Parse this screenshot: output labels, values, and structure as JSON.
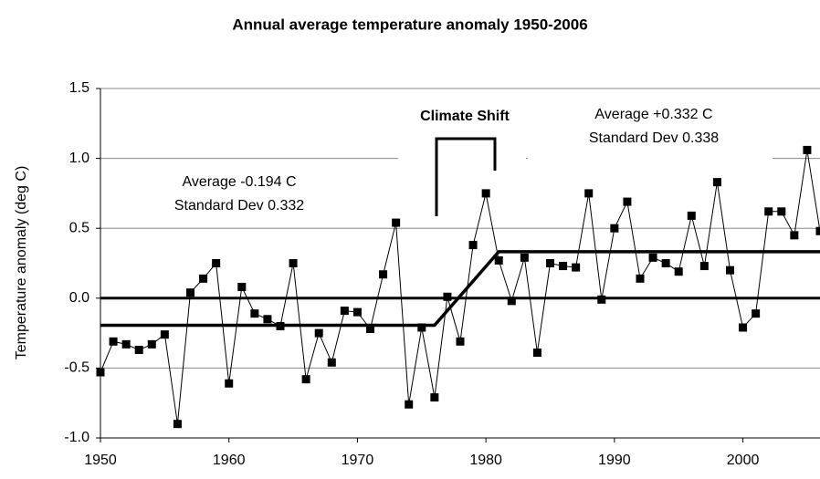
{
  "chart_data": {
    "type": "line",
    "title": "Annual average temperature anomaly 1950-2006",
    "y_label": "Temperature anomaly (deg C)",
    "x": [
      1950,
      1951,
      1952,
      1953,
      1954,
      1955,
      1956,
      1957,
      1958,
      1959,
      1960,
      1961,
      1962,
      1963,
      1964,
      1965,
      1966,
      1967,
      1968,
      1969,
      1970,
      1971,
      1972,
      1973,
      1974,
      1975,
      1976,
      1977,
      1978,
      1979,
      1980,
      1981,
      1982,
      1983,
      1984,
      1985,
      1986,
      1987,
      1988,
      1989,
      1990,
      1991,
      1992,
      1993,
      1994,
      1995,
      1996,
      1997,
      1998,
      1999,
      2000,
      2001,
      2002,
      2003,
      2004,
      2005,
      2006
    ],
    "series": [
      {
        "color": "#000000",
        "values": [
          -0.53,
          -0.31,
          -0.33,
          -0.37,
          -0.33,
          -0.26,
          -0.9,
          0.04,
          0.14,
          0.25,
          -0.61,
          0.08,
          -0.11,
          -0.15,
          -0.2,
          0.25,
          -0.58,
          -0.25,
          -0.46,
          -0.09,
          -0.1,
          -0.22,
          0.17,
          0.54,
          -0.76,
          -0.21,
          -0.71,
          0.01,
          -0.31,
          0.38,
          0.75,
          0.27,
          -0.02,
          0.29,
          -0.39,
          0.25,
          0.23,
          0.22,
          0.75,
          -0.01,
          0.5,
          0.69,
          0.14,
          0.29,
          0.25,
          0.19,
          0.59,
          0.23,
          0.83,
          0.2,
          -0.21,
          -0.11,
          0.62,
          0.62,
          0.45,
          1.06,
          0.48
        ]
      }
    ],
    "trend": {
      "color": "#000000",
      "x": [
        1950,
        1976,
        1981,
        2006
      ],
      "values": [
        -0.194,
        -0.194,
        0.332,
        0.332
      ]
    },
    "annotations": [
      "Average  -0.194 C",
      "Standard Dev  0.332",
      "Climate Shift",
      "Average  +0.332 C",
      "Standard Dev  0.338"
    ],
    "xlim": [
      1950,
      2006
    ],
    "xticks": [
      1950,
      1960,
      1970,
      1980,
      1990,
      2000
    ],
    "ylim": [
      -1.0,
      1.5
    ],
    "yticks": [
      {
        "value": 1.5,
        "label": "1.5"
      },
      {
        "value": 1.0,
        "label": "1.0"
      },
      0.5,
      {
        "value": 0.0,
        "label": "0.0"
      },
      -0.5,
      {
        "value": -1.0,
        "label": "-1.0"
      }
    ],
    "grid": true
  }
}
